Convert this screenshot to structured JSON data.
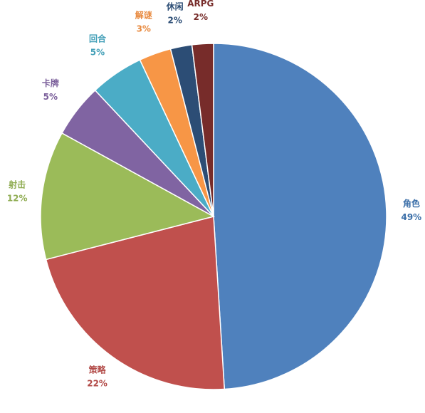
{
  "chart_data": {
    "type": "pie",
    "categories": [
      "角色",
      "策略",
      "射击",
      "卡牌",
      "回合",
      "解谜",
      "休闲",
      "ARPG"
    ],
    "values": [
      49,
      22,
      12,
      5,
      5,
      3,
      2,
      2
    ],
    "value_labels": [
      "49%",
      "22%",
      "12%",
      "5%",
      "5%",
      "3%",
      "2%",
      "2%"
    ],
    "colors": [
      "#4f81bd",
      "#c0504d",
      "#9bbb59",
      "#8064a2",
      "#4bacc6",
      "#f79646",
      "#2c4d75",
      "#772c2a"
    ],
    "label_colors": [
      "#3a6ea8",
      "#b24a47",
      "#8fac52",
      "#7a5e9a",
      "#44a0b8",
      "#e8893e",
      "#2c4d75",
      "#772c2a"
    ]
  }
}
